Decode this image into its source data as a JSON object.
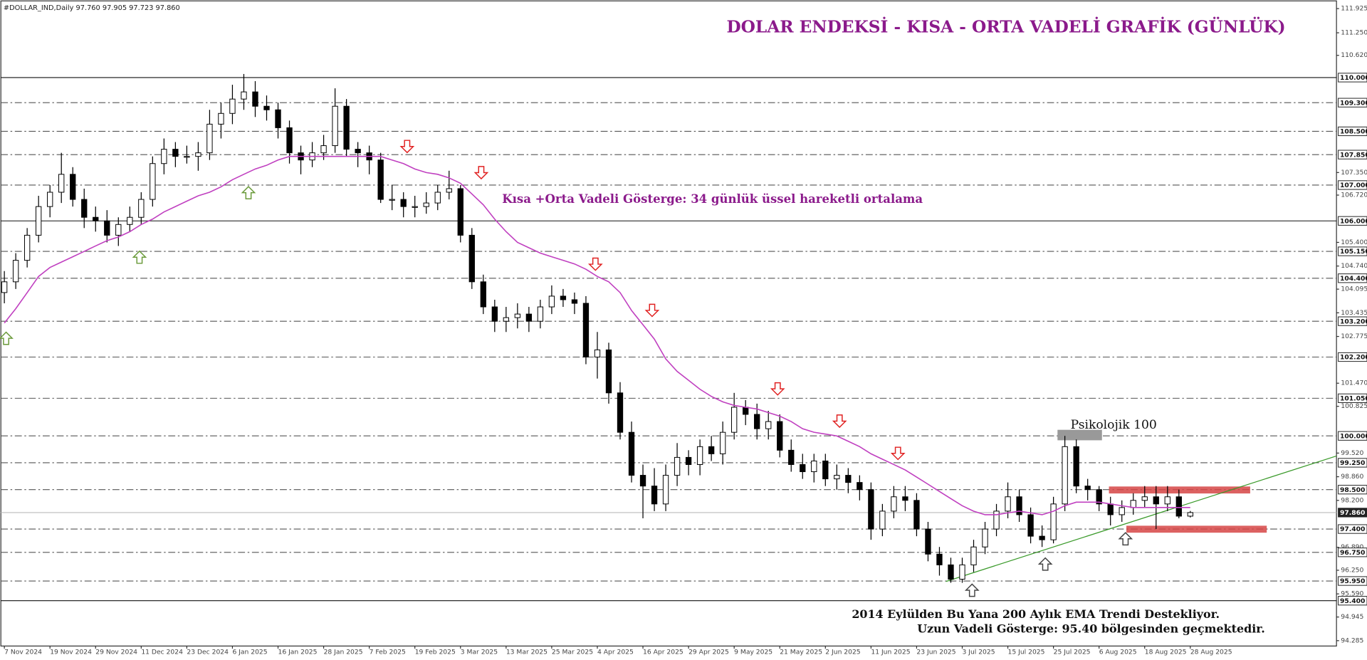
{
  "chart_data": {
    "type": "candlestick",
    "header": "#DOLLAR_IND,Daily  97.760 97.905 97.723 97.860",
    "title": "DOLAR ENDEKSİ - KISA - ORTA VADELİ GRAFİK (GÜNLÜK)",
    "annotations": {
      "ema_note": "Kısa +Orta Vadeli Gösterge: 34 günlük üssel hareketli ortalama",
      "psychological": "Psikolojik 100",
      "bottom_1": "2014 Eylülden Bu Yana 200 Aylık EMA Trendi Destekliyor.",
      "bottom_2": "Uzun Vadeli Gösterge: 95.40 bölgesinden geçmektedir."
    },
    "categories": [
      "7 Nov 2024",
      null,
      null,
      null,
      "19 Nov 2024",
      null,
      null,
      null,
      "29 Nov 2024",
      null,
      null,
      null,
      "11 Dec 2024",
      null,
      null,
      null,
      "23 Dec 2024",
      null,
      null,
      null,
      "6 Jan 2025",
      null,
      null,
      null,
      "16 Jan 2025",
      null,
      null,
      null,
      "28 Jan 2025",
      null,
      null,
      null,
      "7 Feb 2025",
      null,
      null,
      null,
      "19 Feb 2025",
      null,
      null,
      null,
      "3 Mar 2025",
      null,
      null,
      null,
      "13 Mar 2025",
      null,
      null,
      null,
      "25 Mar 2025",
      null,
      null,
      null,
      "4 Apr 2025",
      null,
      null,
      null,
      "16 Apr 2025",
      null,
      null,
      null,
      "29 Apr 2025",
      null,
      null,
      null,
      "9 May 2025",
      null,
      null,
      null,
      "21 May 2025",
      null,
      null,
      null,
      "2 Jun 2025",
      null,
      null,
      null,
      "11 Jun 2025",
      null,
      null,
      null,
      "23 Jun 2025",
      null,
      null,
      null,
      "3 Jul 2025",
      null,
      null,
      null,
      "15 Jul 2025",
      null,
      null,
      null,
      "25 Jul 2025",
      null,
      null,
      null,
      "6 Aug 2025",
      null,
      null,
      null,
      "18 Aug 2025",
      null,
      null,
      null,
      "28 Aug 2025"
    ],
    "ohlc": [
      [
        104.0,
        104.6,
        103.7,
        104.3
      ],
      [
        104.3,
        105.1,
        104.1,
        104.9
      ],
      [
        104.9,
        105.8,
        104.7,
        105.6
      ],
      [
        105.6,
        106.7,
        105.4,
        106.4
      ],
      [
        106.4,
        107.0,
        106.1,
        106.8
      ],
      [
        106.8,
        107.9,
        106.5,
        107.3
      ],
      [
        107.3,
        107.5,
        106.4,
        106.6
      ],
      [
        106.6,
        106.9,
        105.8,
        106.1
      ],
      [
        106.1,
        106.4,
        105.7,
        106.0
      ],
      [
        106.0,
        106.3,
        105.4,
        105.6
      ],
      [
        105.6,
        106.1,
        105.3,
        105.9
      ],
      [
        105.9,
        106.4,
        105.7,
        106.1
      ],
      [
        106.1,
        106.8,
        105.9,
        106.6
      ],
      [
        106.6,
        107.8,
        106.4,
        107.6
      ],
      [
        107.6,
        108.3,
        107.3,
        108.0
      ],
      [
        108.0,
        108.2,
        107.5,
        107.8
      ],
      [
        107.8,
        108.1,
        107.6,
        107.8
      ],
      [
        107.8,
        108.2,
        107.4,
        107.9
      ],
      [
        107.9,
        109.1,
        107.7,
        108.7
      ],
      [
        108.7,
        109.3,
        108.3,
        109.0
      ],
      [
        109.0,
        109.8,
        108.7,
        109.4
      ],
      [
        109.4,
        110.1,
        109.1,
        109.6
      ],
      [
        109.6,
        109.9,
        108.9,
        109.2
      ],
      [
        109.2,
        109.5,
        108.8,
        109.1
      ],
      [
        109.1,
        109.3,
        108.3,
        108.6
      ],
      [
        108.6,
        108.8,
        107.6,
        107.9
      ],
      [
        107.9,
        108.1,
        107.3,
        107.7
      ],
      [
        107.7,
        108.2,
        107.5,
        107.9
      ],
      [
        107.9,
        108.4,
        107.7,
        108.1
      ],
      [
        108.1,
        109.7,
        107.9,
        109.2
      ],
      [
        109.2,
        109.4,
        107.8,
        108.0
      ],
      [
        108.0,
        108.2,
        107.5,
        107.9
      ],
      [
        107.9,
        108.1,
        107.3,
        107.7
      ],
      [
        107.7,
        107.9,
        106.5,
        106.6
      ],
      [
        106.6,
        107.0,
        106.3,
        106.6
      ],
      [
        106.6,
        106.8,
        106.1,
        106.4
      ],
      [
        106.4,
        106.7,
        106.1,
        106.4
      ],
      [
        106.4,
        106.8,
        106.2,
        106.5
      ],
      [
        106.5,
        107.0,
        106.3,
        106.8
      ],
      [
        106.8,
        107.4,
        106.6,
        106.9
      ],
      [
        106.9,
        107.0,
        105.4,
        105.6
      ],
      [
        105.6,
        105.8,
        104.1,
        104.3
      ],
      [
        104.3,
        104.5,
        103.4,
        103.6
      ],
      [
        103.6,
        103.8,
        102.9,
        103.2
      ],
      [
        103.2,
        103.6,
        102.9,
        103.3
      ],
      [
        103.3,
        103.7,
        103.0,
        103.4
      ],
      [
        103.4,
        103.6,
        102.9,
        103.2
      ],
      [
        103.2,
        103.8,
        103.0,
        103.6
      ],
      [
        103.6,
        104.2,
        103.4,
        103.9
      ],
      [
        103.9,
        104.1,
        103.6,
        103.8
      ],
      [
        103.8,
        104.0,
        103.4,
        103.7
      ],
      [
        103.7,
        103.9,
        102.0,
        102.2
      ],
      [
        102.2,
        102.9,
        101.6,
        102.4
      ],
      [
        102.4,
        102.6,
        100.9,
        101.2
      ],
      [
        101.2,
        101.5,
        99.9,
        100.1
      ],
      [
        100.1,
        100.4,
        98.7,
        98.9
      ],
      [
        98.9,
        99.2,
        97.7,
        98.6
      ],
      [
        98.6,
        99.1,
        97.9,
        98.1
      ],
      [
        98.1,
        99.2,
        97.9,
        98.9
      ],
      [
        98.9,
        99.8,
        98.6,
        99.4
      ],
      [
        99.4,
        99.6,
        98.9,
        99.2
      ],
      [
        99.2,
        99.9,
        98.9,
        99.7
      ],
      [
        99.7,
        100.0,
        99.3,
        99.5
      ],
      [
        99.5,
        100.4,
        99.2,
        100.1
      ],
      [
        100.1,
        101.2,
        99.9,
        100.8
      ],
      [
        100.8,
        101.0,
        100.3,
        100.6
      ],
      [
        100.6,
        100.9,
        99.9,
        100.2
      ],
      [
        100.2,
        100.7,
        99.9,
        100.4
      ],
      [
        100.4,
        100.6,
        99.4,
        99.6
      ],
      [
        99.6,
        99.9,
        99.0,
        99.2
      ],
      [
        99.2,
        99.5,
        98.8,
        99.0
      ],
      [
        99.0,
        99.5,
        98.7,
        99.3
      ],
      [
        99.3,
        99.5,
        98.6,
        98.8
      ],
      [
        98.8,
        99.2,
        98.5,
        98.9
      ],
      [
        98.9,
        99.1,
        98.4,
        98.7
      ],
      [
        98.7,
        98.9,
        98.2,
        98.5
      ],
      [
        98.5,
        98.7,
        97.1,
        97.4
      ],
      [
        97.4,
        98.1,
        97.2,
        97.9
      ],
      [
        97.9,
        98.6,
        97.7,
        98.3
      ],
      [
        98.3,
        98.6,
        97.9,
        98.2
      ],
      [
        98.2,
        98.4,
        97.2,
        97.4
      ],
      [
        97.4,
        97.6,
        96.5,
        96.7
      ],
      [
        96.7,
        96.9,
        96.1,
        96.4
      ],
      [
        96.4,
        96.6,
        95.9,
        96.0
      ],
      [
        96.0,
        96.6,
        95.9,
        96.4
      ],
      [
        96.4,
        97.1,
        96.2,
        96.9
      ],
      [
        96.9,
        97.6,
        96.7,
        97.4
      ],
      [
        97.4,
        98.1,
        97.2,
        97.9
      ],
      [
        97.9,
        98.7,
        97.7,
        98.3
      ],
      [
        98.3,
        98.5,
        97.6,
        97.8
      ],
      [
        97.8,
        98.0,
        97.0,
        97.2
      ],
      [
        97.2,
        97.5,
        96.9,
        97.1
      ],
      [
        97.1,
        98.3,
        97.0,
        98.1
      ],
      [
        98.1,
        100.0,
        97.9,
        99.7
      ],
      [
        99.7,
        99.9,
        98.4,
        98.6
      ],
      [
        98.6,
        98.8,
        98.2,
        98.5
      ],
      [
        98.5,
        98.6,
        97.9,
        98.1
      ],
      [
        98.1,
        98.3,
        97.5,
        97.8
      ],
      [
        97.8,
        98.2,
        97.6,
        98.0
      ],
      [
        98.0,
        98.4,
        97.8,
        98.2
      ],
      [
        98.2,
        98.6,
        98.0,
        98.3
      ],
      [
        98.3,
        98.6,
        97.4,
        98.1
      ],
      [
        98.1,
        98.6,
        97.9,
        98.3
      ],
      [
        98.3,
        98.5,
        97.7,
        97.76
      ],
      [
        97.76,
        97.905,
        97.723,
        97.86
      ]
    ],
    "ema": {
      "color": "#c040c0",
      "values": [
        103.15,
        103.55,
        104.0,
        104.45,
        104.7,
        104.85,
        105.0,
        105.15,
        105.3,
        105.45,
        105.55,
        105.7,
        105.9,
        106.05,
        106.25,
        106.4,
        106.55,
        106.7,
        106.8,
        106.95,
        107.15,
        107.3,
        107.45,
        107.55,
        107.7,
        107.8,
        107.8,
        107.8,
        107.8,
        107.8,
        107.8,
        107.8,
        107.8,
        107.8,
        107.7,
        107.6,
        107.45,
        107.35,
        107.3,
        107.2,
        107.05,
        106.75,
        106.45,
        106.05,
        105.7,
        105.4,
        105.25,
        105.1,
        105.0,
        104.9,
        104.8,
        104.65,
        104.45,
        104.3,
        104.0,
        103.5,
        103.1,
        102.7,
        102.15,
        101.8,
        101.55,
        101.3,
        101.1,
        100.95,
        100.85,
        100.8,
        100.75,
        100.65,
        100.55,
        100.4,
        100.2,
        100.1,
        100.05,
        100.0,
        99.85,
        99.7,
        99.5,
        99.35,
        99.2,
        99.05,
        98.85,
        98.65,
        98.45,
        98.25,
        98.05,
        97.9,
        97.8,
        97.8,
        97.85,
        97.9,
        97.85,
        97.8,
        97.9,
        98.05,
        98.15,
        98.15,
        98.15,
        98.1,
        98.05,
        98.0,
        98.0,
        98.0,
        98.0,
        98.0,
        98.0
      ]
    },
    "ylim": [
      94.135,
      112.14
    ],
    "yticks": [
      {
        "value": 111.925,
        "label": "111.925"
      },
      {
        "value": 111.25,
        "label": "111.250"
      },
      {
        "value": 110.62,
        "label": "110.620"
      },
      {
        "value": 107.35,
        "label": "107.350"
      },
      {
        "value": 106.72,
        "label": "106.720"
      },
      {
        "value": 105.4,
        "label": "105.400"
      },
      {
        "value": 104.74,
        "label": "104.740"
      },
      {
        "value": 104.095,
        "label": "104.095"
      },
      {
        "value": 103.435,
        "label": "103.435"
      },
      {
        "value": 102.775,
        "label": "102.775"
      },
      {
        "value": 101.47,
        "label": "101.470"
      },
      {
        "value": 100.825,
        "label": "100.825"
      },
      {
        "value": 99.52,
        "label": "99.520"
      },
      {
        "value": 98.86,
        "label": "98.860"
      },
      {
        "value": 98.2,
        "label": "98.200"
      },
      {
        "value": 96.89,
        "label": "96.890"
      },
      {
        "value": 96.25,
        "label": "96.250"
      },
      {
        "value": 95.59,
        "label": "95.590"
      },
      {
        "value": 94.945,
        "label": "94.945"
      },
      {
        "value": 94.285,
        "label": "94.285"
      }
    ],
    "levels": [
      {
        "value": 110,
        "label": "110.000",
        "style": "solid"
      },
      {
        "value": 109.3,
        "label": "109.300",
        "style": "dashdot"
      },
      {
        "value": 108.5,
        "label": "108.500",
        "style": "dashdot"
      },
      {
        "value": 107.85,
        "label": "107.850",
        "style": "dashdot"
      },
      {
        "value": 107,
        "label": "107.000",
        "style": "dashdot"
      },
      {
        "value": 106,
        "label": "106.000",
        "style": "solid"
      },
      {
        "value": 105.15,
        "label": "105.150",
        "style": "dashdot"
      },
      {
        "value": 104.4,
        "label": "104.400",
        "style": "dashdot"
      },
      {
        "value": 103.2,
        "label": "103.200",
        "style": "dashdot"
      },
      {
        "value": 102.2,
        "label": "102.200",
        "style": "dashdot"
      },
      {
        "value": 101.05,
        "label": "101.050",
        "style": "dashdot"
      },
      {
        "value": 100,
        "label": "100.000",
        "style": "dashdot"
      },
      {
        "value": 99.25,
        "label": "99.250",
        "style": "dashdot"
      },
      {
        "value": 98.5,
        "label": "98.500",
        "style": "dashdot"
      },
      {
        "value": 97.86,
        "label": "97.860",
        "style": "current"
      },
      {
        "value": 97.4,
        "label": "97.400",
        "style": "dashdot"
      },
      {
        "value": 96.75,
        "label": "96.750",
        "style": "dashdot"
      },
      {
        "value": 95.95,
        "label": "95.950",
        "style": "dashdot"
      },
      {
        "value": 95.4,
        "label": "95.400",
        "style": "solid"
      }
    ]
  }
}
